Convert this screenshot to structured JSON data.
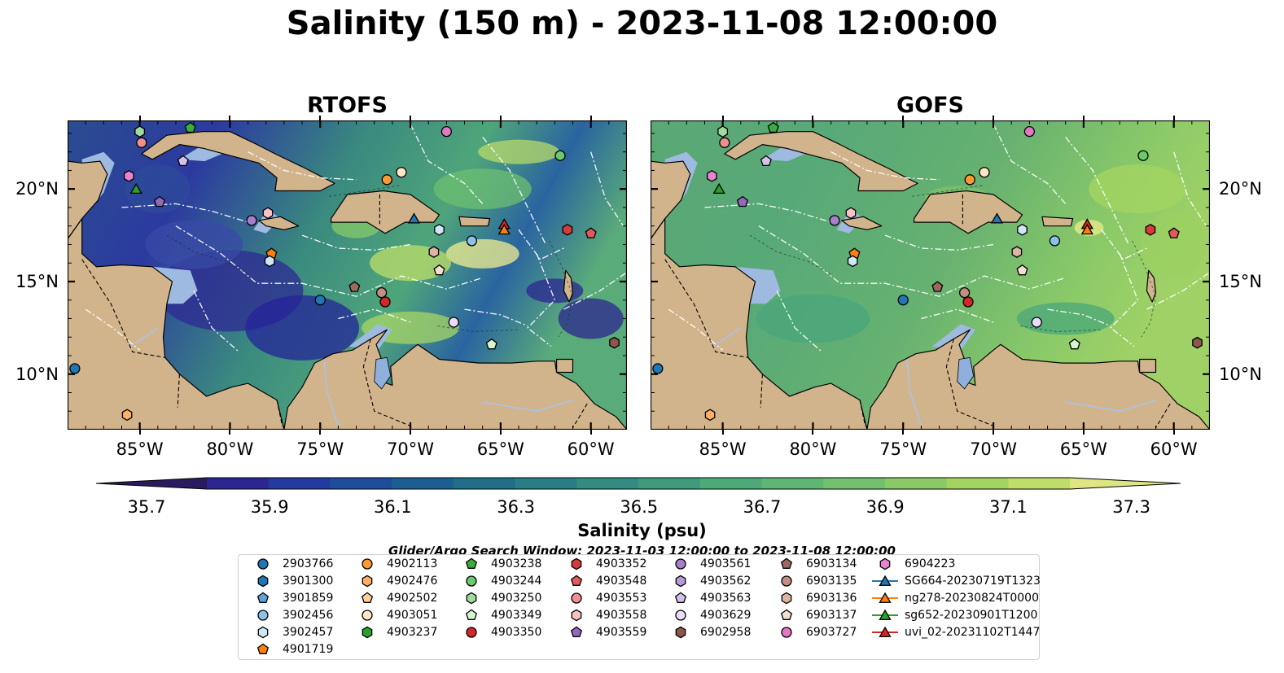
{
  "title": "Salinity (150 m) - 2023-11-08 12:00:00",
  "panels": [
    {
      "name": "RTOFS",
      "theme": "rtofs"
    },
    {
      "name": "GOFS",
      "theme": "gofs"
    }
  ],
  "axes": {
    "lon_labels": [
      "85°W",
      "80°W",
      "75°W",
      "70°W",
      "65°W",
      "60°W"
    ],
    "lat_labels": [
      "20°N",
      "15°N",
      "10°N"
    ],
    "lon_values": [
      -85,
      -80,
      -75,
      -70,
      -65,
      -60
    ],
    "lat_values": [
      20,
      15,
      10
    ],
    "lon_range": [
      -89,
      -58
    ],
    "lat_range": [
      7,
      23.7
    ]
  },
  "colorbar": {
    "title": "Salinity (psu)",
    "ticks": [
      "35.7",
      "35.9",
      "36.1",
      "36.3",
      "36.5",
      "36.7",
      "36.9",
      "37.1",
      "37.3"
    ],
    "colors": [
      "#2b1a5e",
      "#2c2790",
      "#233aa0",
      "#1e4d9b",
      "#1c5e91",
      "#216e89",
      "#2a7d85",
      "#338b82",
      "#3f9a7c",
      "#4ea978",
      "#5fb573",
      "#72c06d",
      "#89ca66",
      "#a3d462",
      "#bfdd6a",
      "#dde683"
    ]
  },
  "search_window": "Glider/Argo Search Window: 2023-11-03 12:00:00 to 2023-11-08 12:00:00",
  "legend": {
    "columns": [
      [
        {
          "label": "2903766",
          "marker": "circle",
          "color": "#1f77b4"
        },
        {
          "label": "3901300",
          "marker": "hexagon",
          "color": "#1f77b4"
        },
        {
          "label": "3901859",
          "marker": "pentagon",
          "color": "#5fa2d6"
        },
        {
          "label": "3902456",
          "marker": "circle",
          "color": "#8ec1e6"
        },
        {
          "label": "3902457",
          "marker": "hexagon",
          "color": "#cfe6f5"
        },
        {
          "label": "4901719",
          "marker": "pentagon",
          "color": "#ff7f0e"
        }
      ],
      [
        {
          "label": "4902113",
          "marker": "circle",
          "color": "#ff9933"
        },
        {
          "label": "4902476",
          "marker": "hexagon",
          "color": "#ffb066"
        },
        {
          "label": "4902502",
          "marker": "pentagon",
          "color": "#ffd199"
        },
        {
          "label": "4903051",
          "marker": "circle",
          "color": "#ffe6c4"
        },
        {
          "label": "4903237",
          "marker": "hexagon",
          "color": "#2ca02c"
        }
      ],
      [
        {
          "label": "4903238",
          "marker": "pentagon",
          "color": "#3cac3c"
        },
        {
          "label": "4903244",
          "marker": "circle",
          "color": "#6cc96c"
        },
        {
          "label": "4903250",
          "marker": "hexagon",
          "color": "#9fdc9f"
        },
        {
          "label": "4903349",
          "marker": "pentagon",
          "color": "#d6f5d0"
        },
        {
          "label": "4903350",
          "marker": "circle",
          "color": "#d62728"
        }
      ],
      [
        {
          "label": "4903352",
          "marker": "hexagon",
          "color": "#d63a3a"
        },
        {
          "label": "4903548",
          "marker": "pentagon",
          "color": "#e05a5a"
        },
        {
          "label": "4903553",
          "marker": "circle",
          "color": "#f08f8f"
        },
        {
          "label": "4903558",
          "marker": "hexagon",
          "color": "#f7c3c3"
        },
        {
          "label": "4903559",
          "marker": "pentagon",
          "color": "#9467bd"
        }
      ],
      [
        {
          "label": "4903561",
          "marker": "circle",
          "color": "#a57fcb"
        },
        {
          "label": "4903562",
          "marker": "hexagon",
          "color": "#b99ad8"
        },
        {
          "label": "4903563",
          "marker": "pentagon",
          "color": "#d5c0ea"
        },
        {
          "label": "4903629",
          "marker": "circle",
          "color": "#eadcf7"
        },
        {
          "label": "6902958",
          "marker": "hexagon",
          "color": "#8c564b"
        }
      ],
      [
        {
          "label": "6903134",
          "marker": "pentagon",
          "color": "#9a6a5e"
        },
        {
          "label": "6903135",
          "marker": "circle",
          "color": "#c08f80"
        },
        {
          "label": "6903136",
          "marker": "hexagon",
          "color": "#dcb4a4"
        },
        {
          "label": "6903137",
          "marker": "pentagon",
          "color": "#f3dcd2"
        },
        {
          "label": "6903727",
          "marker": "circle",
          "color": "#e377c2"
        }
      ],
      [
        {
          "label": "6904223",
          "marker": "hexagon",
          "color": "#e983cf"
        },
        {
          "label": "SG664-20230719T1323",
          "marker": "triangle",
          "color": "#1f77b4",
          "line": true
        },
        {
          "label": "ng278-20230824T0000",
          "marker": "triangle",
          "color": "#ff7f0e",
          "line": true
        },
        {
          "label": "sg652-20230901T1200",
          "marker": "triangle",
          "color": "#2ca02c",
          "line": true
        },
        {
          "label": "uvi_02-20231102T1447",
          "marker": "triangle",
          "color": "#d62728",
          "line": true
        }
      ]
    ]
  },
  "observations": [
    {
      "lon": -85.0,
      "lat": 23.1,
      "marker": "hexagon",
      "color": "#9fdc9f"
    },
    {
      "lon": -82.2,
      "lat": 23.3,
      "marker": "pentagon",
      "color": "#3cac3c"
    },
    {
      "lon": -84.9,
      "lat": 22.5,
      "marker": "circle",
      "color": "#f08f8f"
    },
    {
      "lon": -82.6,
      "lat": 21.5,
      "marker": "pentagon",
      "color": "#d5c0ea"
    },
    {
      "lon": -85.6,
      "lat": 20.7,
      "marker": "hexagon",
      "color": "#e983cf"
    },
    {
      "lon": -85.2,
      "lat": 20.0,
      "marker": "triangle",
      "color": "#2ca02c"
    },
    {
      "lon": -83.9,
      "lat": 19.3,
      "marker": "pentagon",
      "color": "#9467bd"
    },
    {
      "lon": -78.8,
      "lat": 18.3,
      "marker": "circle",
      "color": "#a57fcb"
    },
    {
      "lon": -77.9,
      "lat": 18.7,
      "marker": "hexagon",
      "color": "#f7c3c3"
    },
    {
      "lon": -77.7,
      "lat": 16.5,
      "marker": "pentagon",
      "color": "#ff7f0e"
    },
    {
      "lon": -77.8,
      "lat": 16.1,
      "marker": "hexagon",
      "color": "#cfe6f5"
    },
    {
      "lon": -75.0,
      "lat": 14.0,
      "marker": "circle",
      "color": "#1f77b4"
    },
    {
      "lon": -73.1,
      "lat": 14.7,
      "marker": "pentagon",
      "color": "#9a6a5e"
    },
    {
      "lon": -71.6,
      "lat": 14.4,
      "marker": "circle",
      "color": "#c08f80"
    },
    {
      "lon": -71.4,
      "lat": 13.9,
      "marker": "circle",
      "color": "#d62728"
    },
    {
      "lon": -71.3,
      "lat": 20.5,
      "marker": "circle",
      "color": "#ff9933"
    },
    {
      "lon": -70.5,
      "lat": 20.9,
      "marker": "circle",
      "color": "#ffe6c4"
    },
    {
      "lon": -69.8,
      "lat": 18.4,
      "marker": "triangle",
      "color": "#1f77b4"
    },
    {
      "lon": -68.4,
      "lat": 17.8,
      "marker": "hexagon",
      "color": "#cfe6f5"
    },
    {
      "lon": -66.6,
      "lat": 17.2,
      "marker": "circle",
      "color": "#8ec1e6"
    },
    {
      "lon": -68.0,
      "lat": 23.1,
      "marker": "circle",
      "color": "#e377c2"
    },
    {
      "lon": -68.7,
      "lat": 16.6,
      "marker": "hexagon",
      "color": "#dcb4a4"
    },
    {
      "lon": -68.4,
      "lat": 15.6,
      "marker": "pentagon",
      "color": "#f3dcd2"
    },
    {
      "lon": -67.6,
      "lat": 12.8,
      "marker": "circle",
      "color": "#eadcf7"
    },
    {
      "lon": -64.8,
      "lat": 18.1,
      "marker": "triangle",
      "color": "#d62728"
    },
    {
      "lon": -64.8,
      "lat": 17.8,
      "marker": "triangle",
      "color": "#ff7f0e"
    },
    {
      "lon": -65.5,
      "lat": 11.6,
      "marker": "pentagon",
      "color": "#d6f5d0"
    },
    {
      "lon": -61.7,
      "lat": 21.8,
      "marker": "circle",
      "color": "#6cc96c"
    },
    {
      "lon": -61.3,
      "lat": 17.8,
      "marker": "hexagon",
      "color": "#d63a3a"
    },
    {
      "lon": -60.0,
      "lat": 17.6,
      "marker": "pentagon",
      "color": "#e05a5a"
    },
    {
      "lon": -58.7,
      "lat": 11.7,
      "marker": "hexagon",
      "color": "#8c564b"
    },
    {
      "lon": -88.6,
      "lat": 10.3,
      "marker": "circle",
      "color": "#1f77b4"
    },
    {
      "lon": -85.7,
      "lat": 7.8,
      "marker": "hexagon",
      "color": "#ffb066"
    }
  ]
}
